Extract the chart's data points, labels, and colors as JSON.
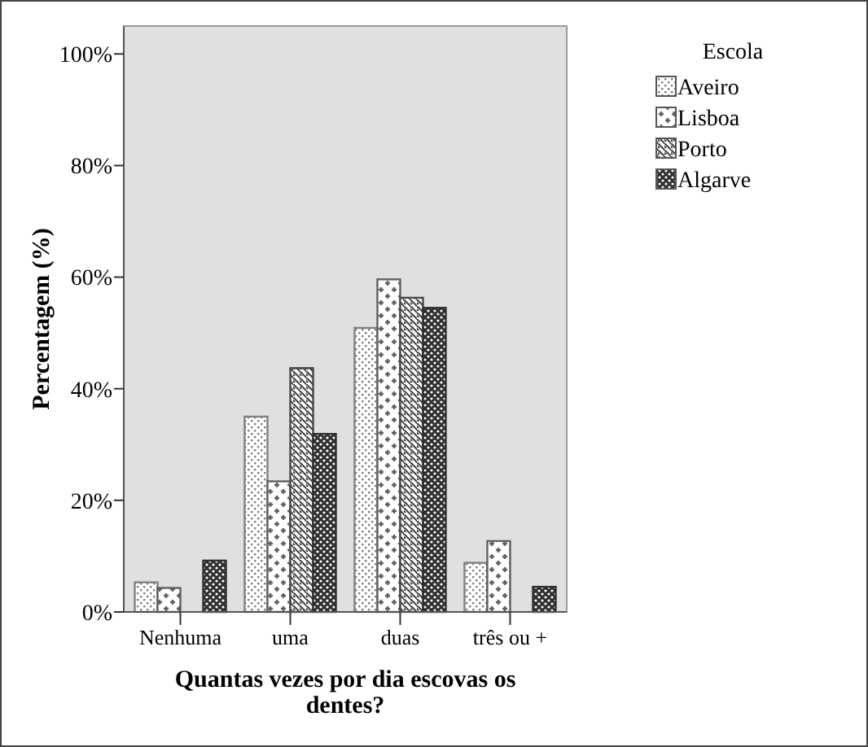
{
  "chart_data": {
    "type": "bar",
    "xlabel": "Quantas vezes por dia escovas os dentes?",
    "ylabel": "Percentagem (%)",
    "legend_title": "Escola",
    "legend": "right",
    "categories": [
      "Nenhuma",
      "uma",
      "duas",
      "três ou +"
    ],
    "series": [
      {
        "name": "Aveiro",
        "color": "#808080",
        "values": [
          5.3,
          35.0,
          50.9,
          8.8
        ]
      },
      {
        "name": "Lisboa",
        "color": "#606060",
        "values": [
          4.3,
          23.4,
          59.6,
          12.7
        ]
      },
      {
        "name": "Porto",
        "color": "#484848",
        "values": [
          0,
          43.7,
          56.3,
          0
        ]
      },
      {
        "name": "Algarve",
        "color": "#303030",
        "values": [
          9.2,
          31.9,
          54.5,
          4.5
        ]
      }
    ],
    "ylim": [
      0,
      105
    ],
    "yticks": [
      {
        "value": 0,
        "label": "0%"
      },
      {
        "value": 20,
        "label": "20%"
      },
      {
        "value": 40,
        "label": "40%"
      },
      {
        "value": 60,
        "label": "60%"
      },
      {
        "value": 80,
        "label": "80%"
      },
      {
        "value": 100,
        "label": "100%"
      }
    ],
    "grid": false
  }
}
